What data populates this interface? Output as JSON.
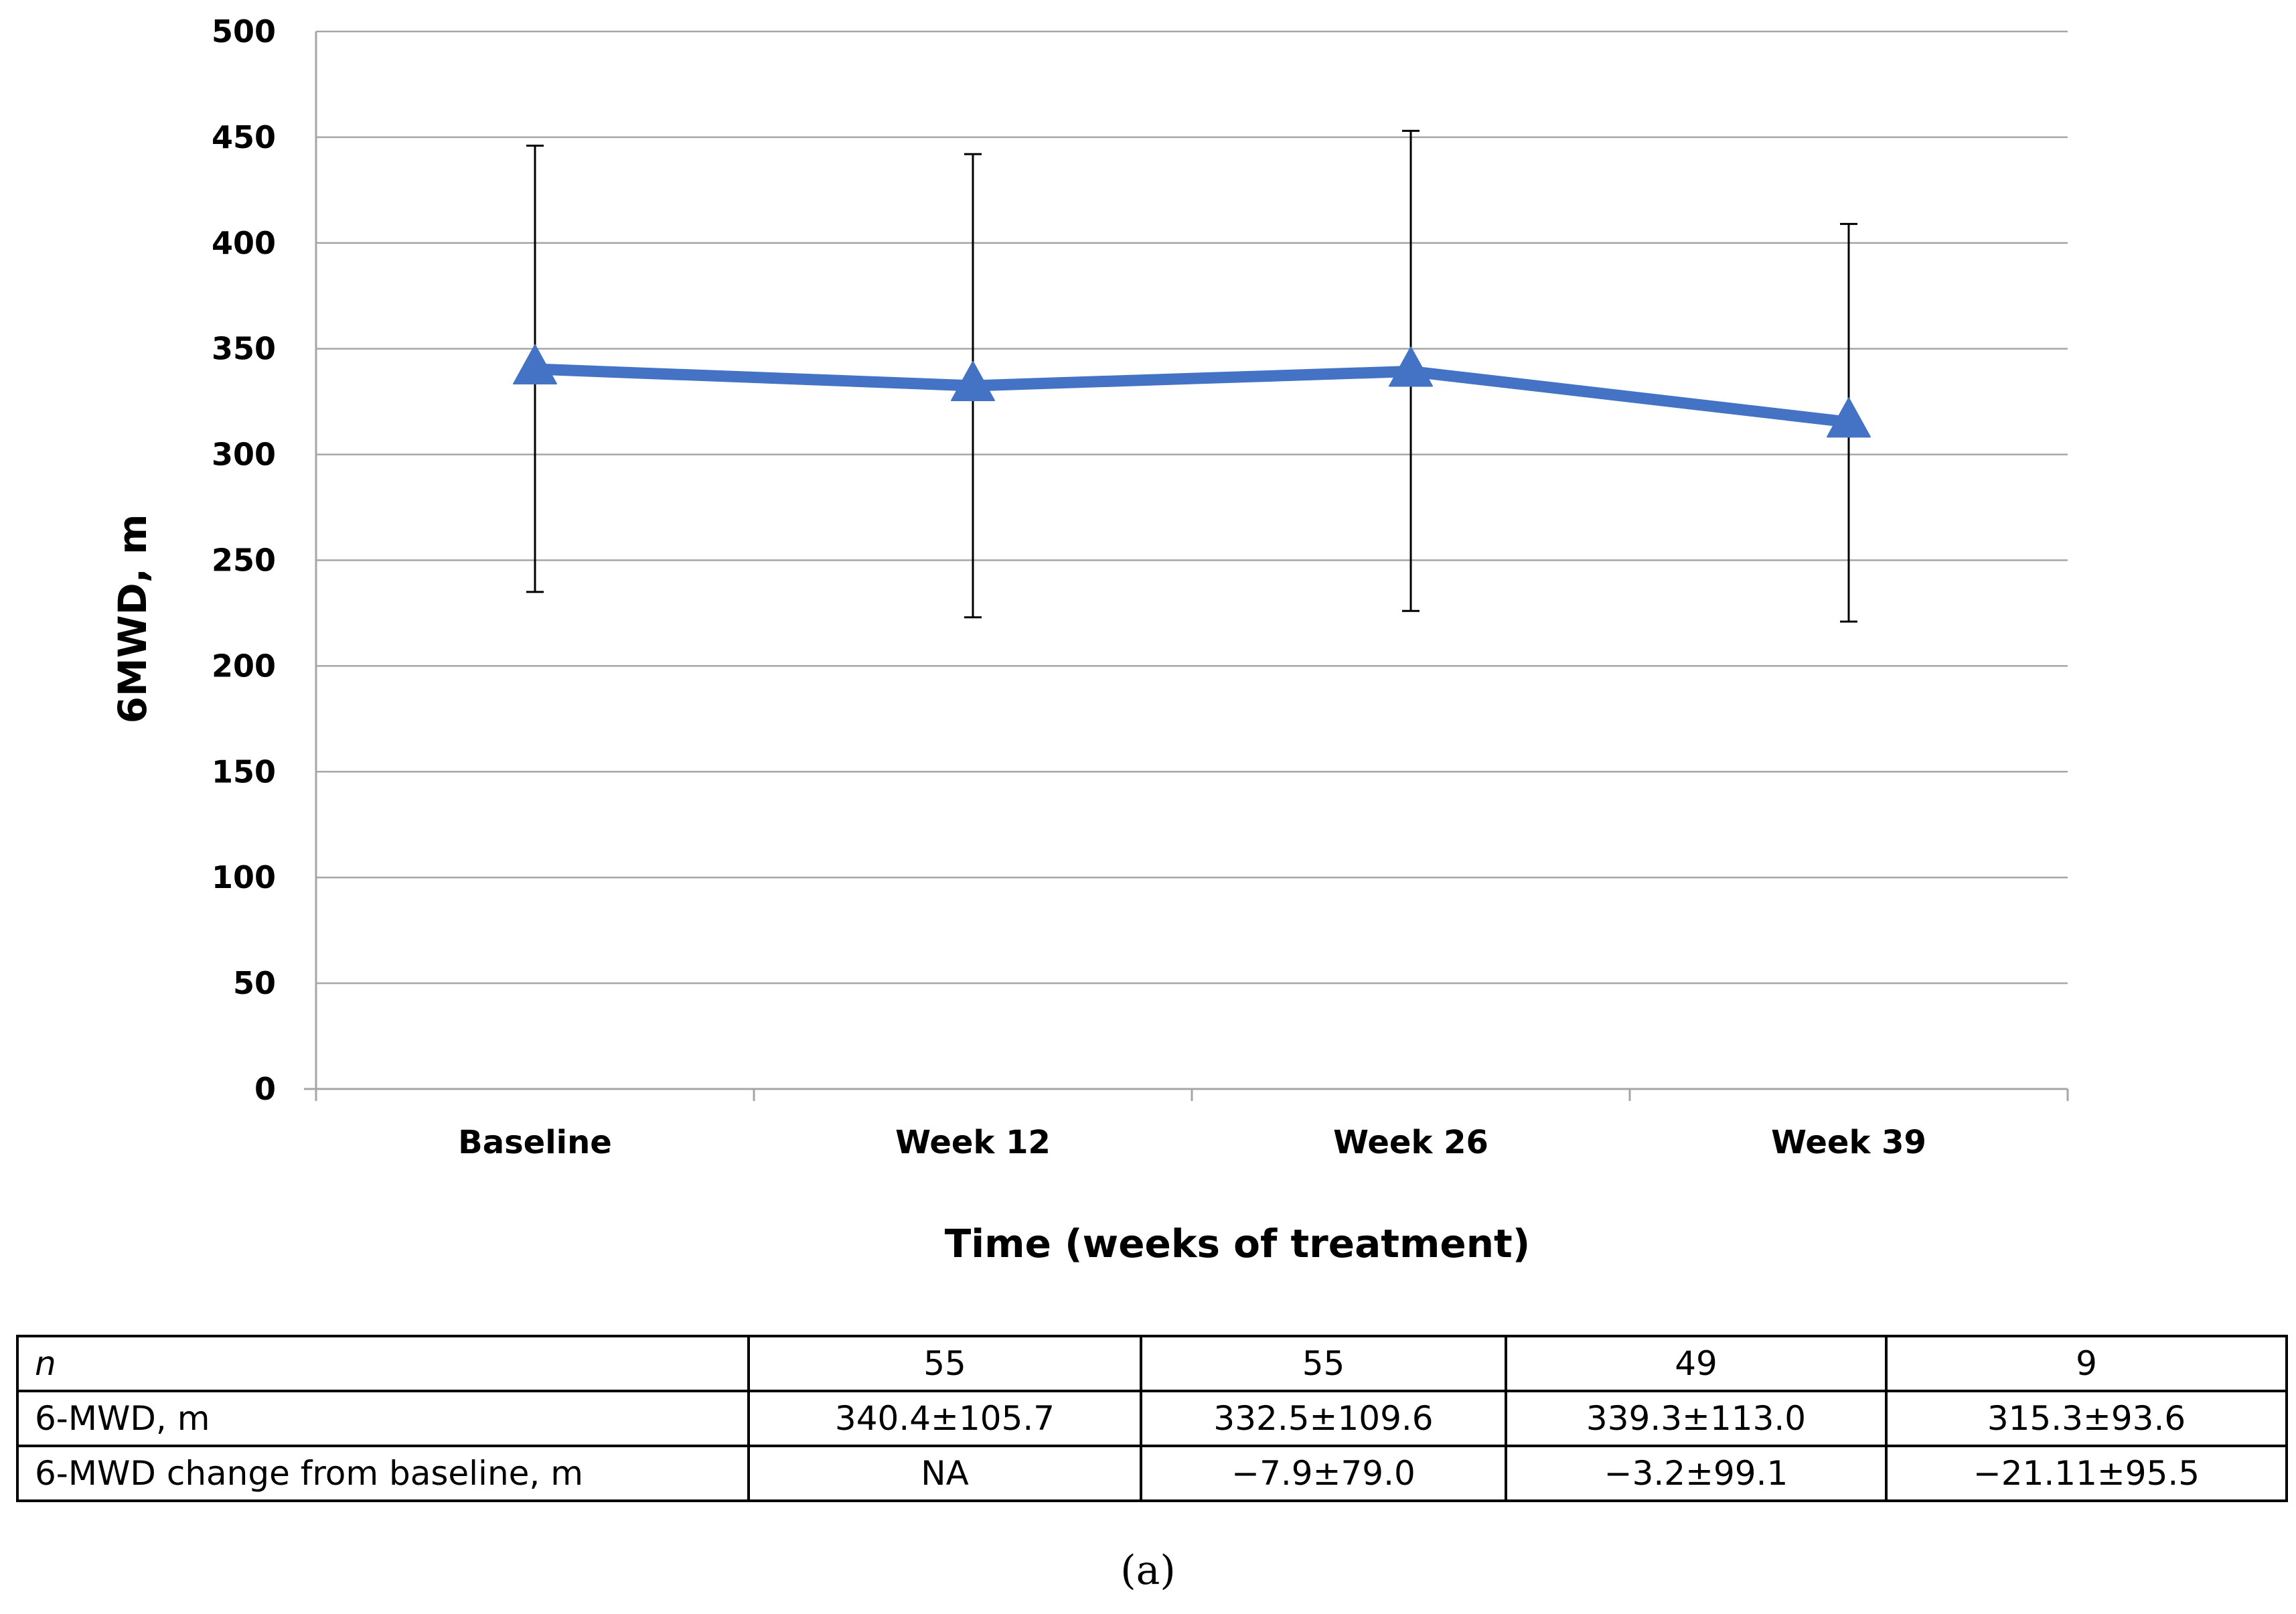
{
  "chart_data": {
    "type": "line",
    "title": "",
    "xlabel": "Time (weeks of treatment)",
    "ylabel": "6MWD, m",
    "ylim": [
      0,
      500
    ],
    "yticks": [
      0,
      50,
      100,
      150,
      200,
      250,
      300,
      350,
      400,
      450,
      500
    ],
    "grid": true,
    "categories": [
      "Baseline",
      "Week 12",
      "Week 26",
      "Week 39"
    ],
    "series": [
      {
        "name": "6MWD",
        "color": "#4472C4",
        "marker": "triangle",
        "values": [
          340.4,
          332.5,
          339.3,
          315.3
        ],
        "error_low": [
          235,
          223,
          226,
          221
        ],
        "error_high": [
          446,
          442,
          453,
          409
        ]
      }
    ]
  },
  "table": {
    "rows": [
      {
        "label": "n",
        "values": [
          "55",
          "55",
          "49",
          "9"
        ]
      },
      {
        "label": "6-MWD, m",
        "values": [
          "340.4±105.7",
          "332.5±109.6",
          "339.3±113.0",
          "315.3±93.6"
        ]
      },
      {
        "label": "6-MWD change from baseline, m",
        "values": [
          "NA",
          "−7.9±79.0",
          "−3.2±99.1",
          "−21.11±95.5"
        ]
      }
    ]
  },
  "panel_label": "(a)"
}
